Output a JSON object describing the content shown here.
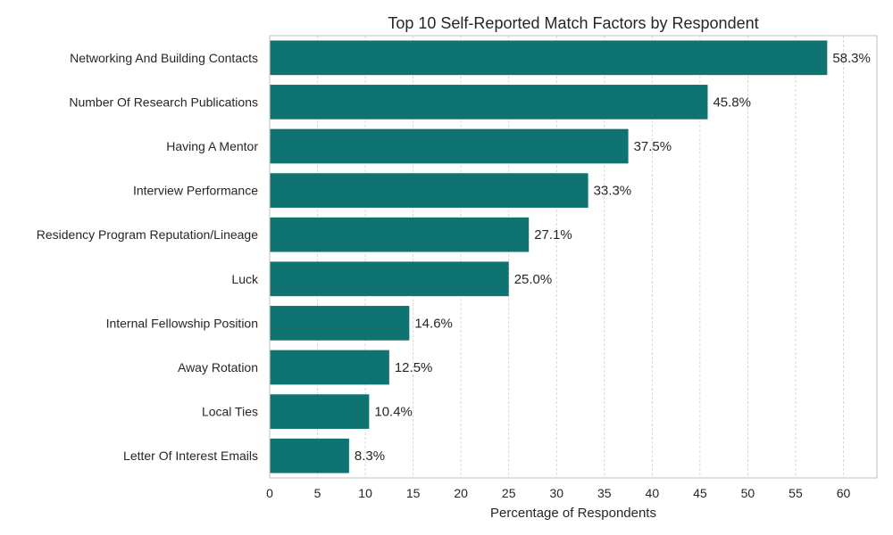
{
  "chart_data": {
    "type": "bar",
    "orientation": "horizontal",
    "title": "Top 10 Self-Reported Match Factors by Respondent",
    "xlabel": "Percentage of Respondents",
    "ylabel": "",
    "xlim": [
      0,
      63.5
    ],
    "xticks": [
      0,
      5,
      10,
      15,
      20,
      25,
      30,
      35,
      40,
      45,
      50,
      55,
      60
    ],
    "grid": "x dashed",
    "bar_color": "#0e7371",
    "categories": [
      "Networking And Building Contacts",
      "Number Of Research Publications",
      "Having A Mentor",
      "Interview Performance",
      "Residency Program Reputation/Lineage",
      "Luck",
      "Internal Fellowship Position",
      "Away Rotation",
      "Local Ties",
      "Letter Of Interest Emails"
    ],
    "values": [
      58.3,
      45.8,
      37.5,
      33.3,
      27.1,
      25.0,
      14.6,
      12.5,
      10.4,
      8.3
    ],
    "data_labels": [
      "58.3%",
      "45.8%",
      "37.5%",
      "33.3%",
      "27.1%",
      "25.0%",
      "14.6%",
      "12.5%",
      "10.4%",
      "8.3%"
    ]
  }
}
